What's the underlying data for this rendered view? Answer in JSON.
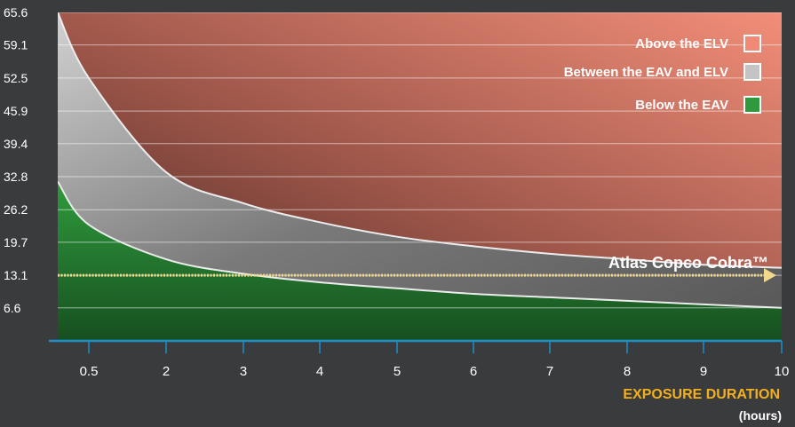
{
  "chart_data": {
    "type": "area",
    "x_ticks": [
      "0.5",
      "2",
      "3",
      "4",
      "5",
      "6",
      "7",
      "8",
      "9",
      "10"
    ],
    "y_ticks": [
      "65.6",
      "59.1",
      "52.5",
      "45.9",
      "39.4",
      "32.8",
      "26.2",
      "19.7",
      "13.1",
      "6.6"
    ],
    "xlabel": "EXPOSURE DURATION",
    "xlabel_unit": "(hours)",
    "ylim": [
      0,
      65.6
    ],
    "grid": true,
    "legend_position": "top-right",
    "legend": [
      {
        "label": "Above the ELV",
        "color": "#f08a76"
      },
      {
        "label": "Between the EAV and ELV",
        "color": "#c4c4c4"
      },
      {
        "label": "Below the EAV",
        "color": "#2e9a3c"
      }
    ],
    "series": [
      {
        "name": "ELV",
        "x": [
          0.5,
          1,
          2,
          3,
          4,
          5,
          6,
          7,
          8,
          9,
          10
        ],
        "y": [
          65.6,
          52.5,
          33.7,
          27.5,
          23.7,
          20.8,
          18.9,
          17.4,
          16.3,
          15.2,
          14.6
        ]
      },
      {
        "name": "EAV",
        "x": [
          0.5,
          1,
          2,
          3,
          4,
          5,
          6,
          7,
          8,
          9,
          10
        ],
        "y": [
          31.8,
          23.2,
          16.3,
          13.4,
          11.7,
          10.5,
          9.4,
          8.7,
          8.0,
          7.3,
          6.6
        ]
      }
    ],
    "reference_line": {
      "label": "Atlas Copco Cobra™",
      "y": 13.1,
      "color": "#f0d98a"
    }
  }
}
